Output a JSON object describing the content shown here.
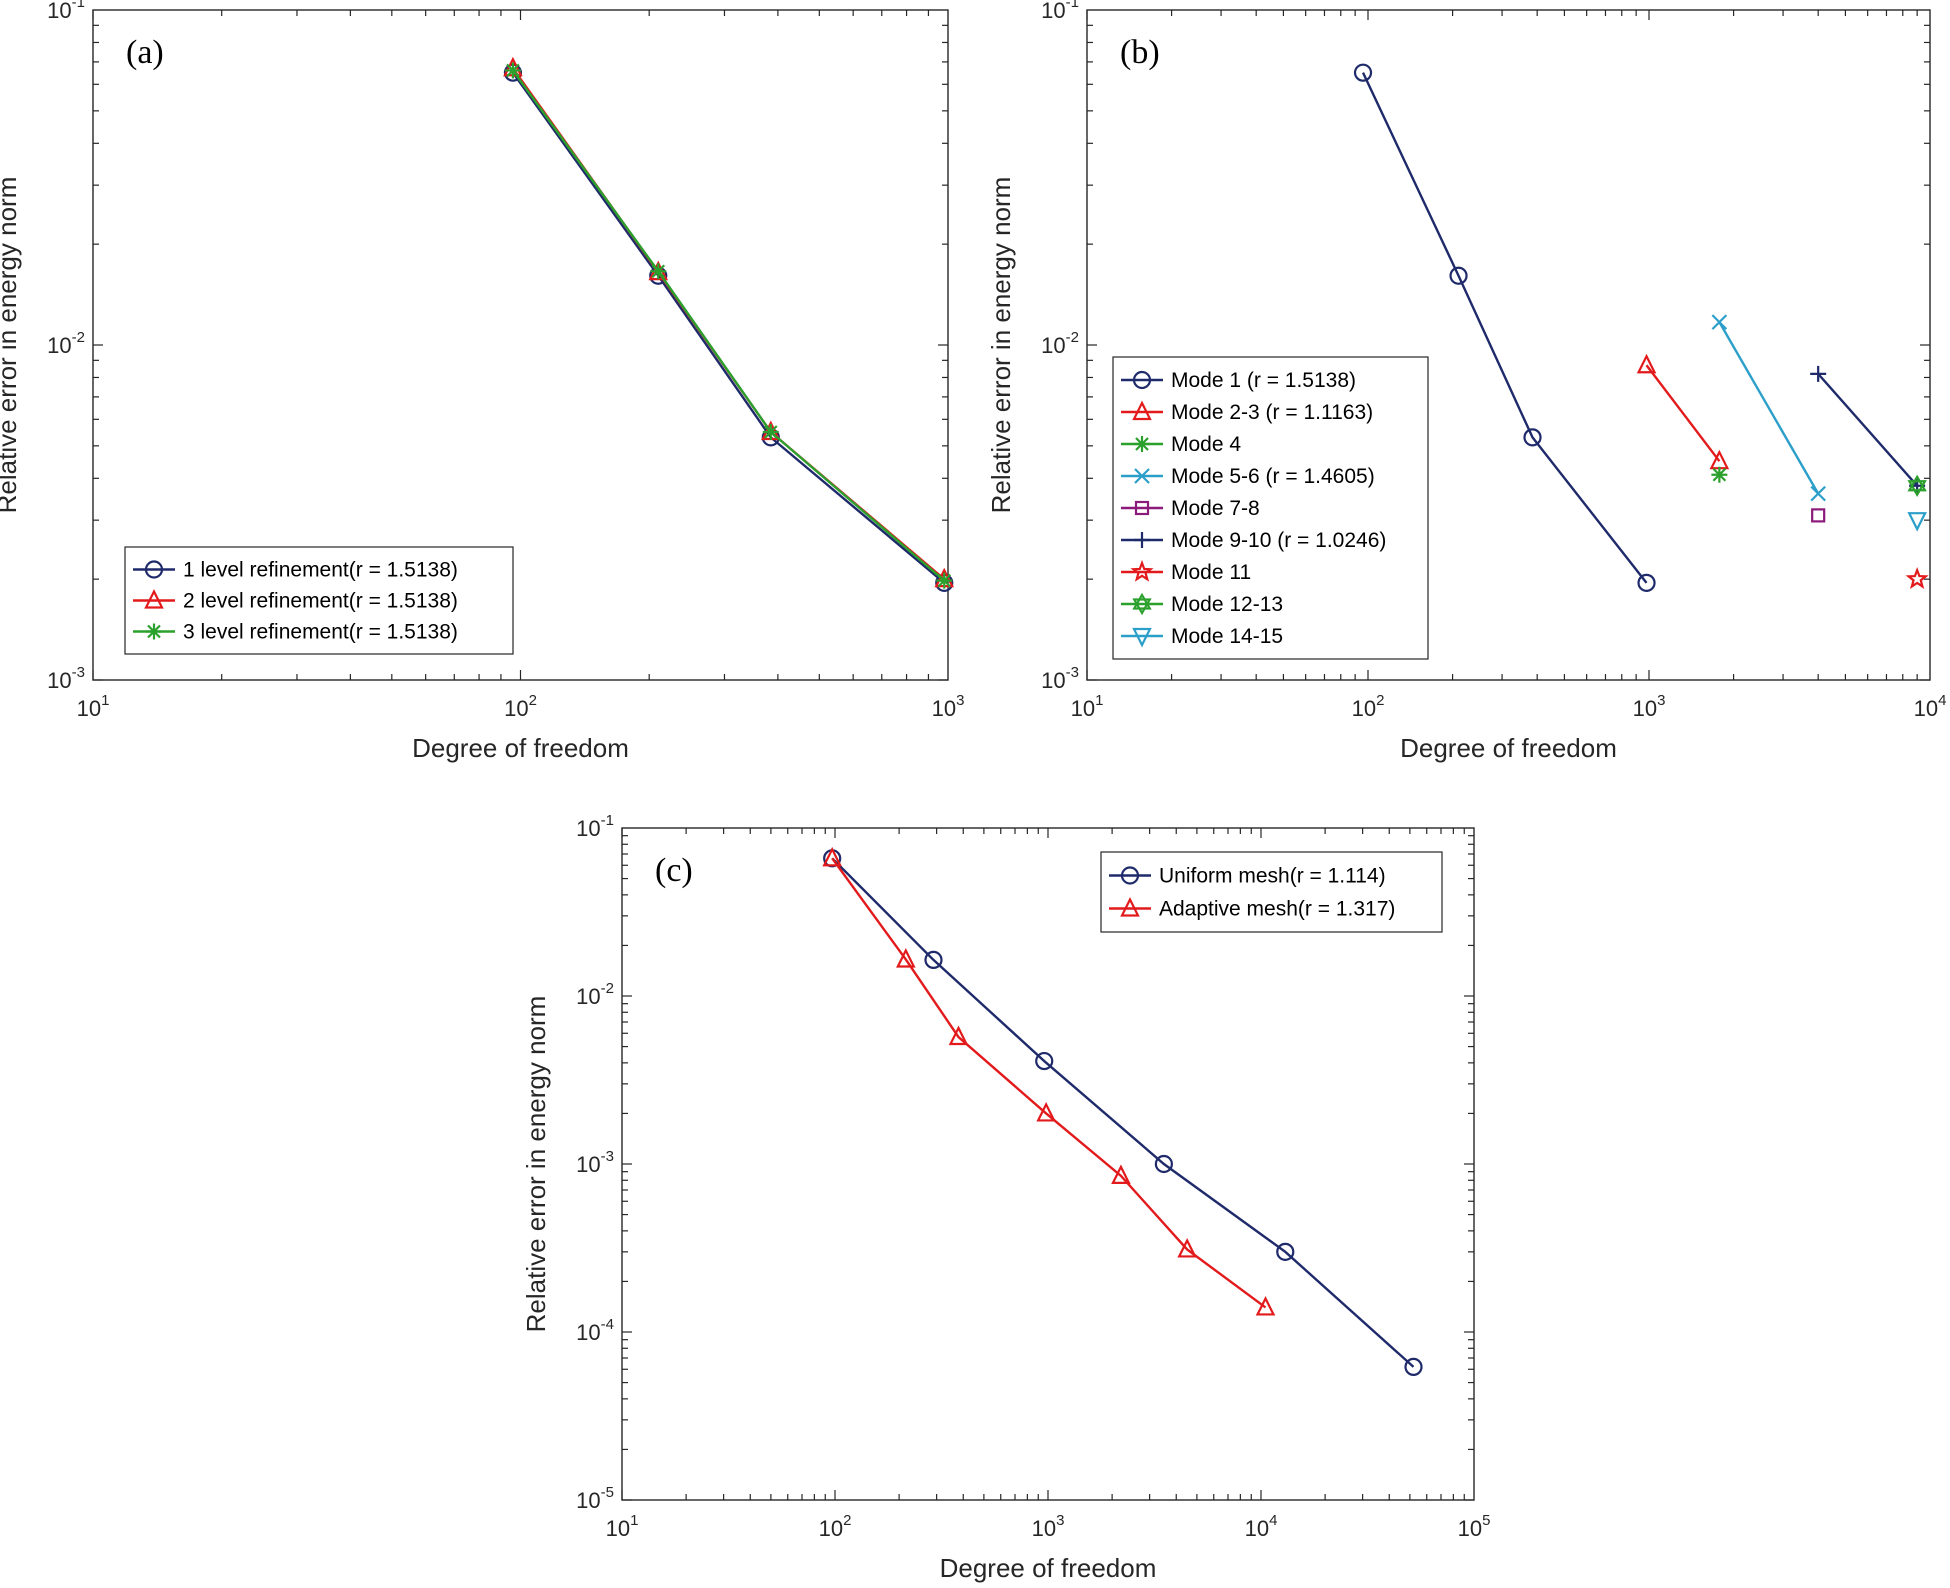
{
  "chart_data": [
    {
      "id": "a",
      "type": "line",
      "panel_label": "(a)",
      "xlabel": "Degree of freedom",
      "ylabel": "Relative error in energy norm",
      "xscale": "log",
      "yscale": "log",
      "xlim": [
        10,
        1000
      ],
      "ylim": [
        0.001,
        0.1
      ],
      "xticks": [
        {
          "base": "10",
          "exp": "1"
        },
        {
          "base": "10",
          "exp": "2"
        },
        {
          "base": "10",
          "exp": "3"
        }
      ],
      "yticks": [
        {
          "base": "10",
          "exp": "-3"
        },
        {
          "base": "10",
          "exp": "-2"
        },
        {
          "base": "10",
          "exp": "-1"
        }
      ],
      "legend_position": "bottom-left",
      "series": [
        {
          "name": "1 level refinement(r = 1.5138)",
          "color": "#1f2a6b",
          "marker": "circle",
          "x": [
            96,
            210,
            385,
            980
          ],
          "y": [
            0.065,
            0.0161,
            0.0053,
            0.00195
          ]
        },
        {
          "name": "2 level refinement(r = 1.5138)",
          "color": "#e31a1c",
          "marker": "triangle",
          "x": [
            96,
            210,
            385,
            980
          ],
          "y": [
            0.067,
            0.0165,
            0.0055,
            0.002
          ]
        },
        {
          "name": "3 level refinement(r = 1.5138)",
          "color": "#2ca02c",
          "marker": "asterisk",
          "x": [
            96,
            210,
            385,
            980
          ],
          "y": [
            0.066,
            0.0166,
            0.0055,
            0.00198
          ]
        }
      ]
    },
    {
      "id": "b",
      "type": "line",
      "panel_label": "(b)",
      "xlabel": "Degree of freedom",
      "ylabel": "Relative error in energy norm",
      "xscale": "log",
      "yscale": "log",
      "xlim": [
        10,
        10000
      ],
      "ylim": [
        0.001,
        0.1
      ],
      "xticks": [
        {
          "base": "10",
          "exp": "1"
        },
        {
          "base": "10",
          "exp": "2"
        },
        {
          "base": "10",
          "exp": "3"
        },
        {
          "base": "10",
          "exp": "4"
        }
      ],
      "yticks": [
        {
          "base": "10",
          "exp": "-3"
        },
        {
          "base": "10",
          "exp": "-2"
        },
        {
          "base": "10",
          "exp": "-1"
        }
      ],
      "legend_position": "left",
      "series": [
        {
          "name": "Mode 1 (r = 1.5138)",
          "color": "#1f2a6b",
          "marker": "circle",
          "x": [
            96,
            210,
            385,
            980
          ],
          "y": [
            0.065,
            0.0161,
            0.0053,
            0.00195
          ]
        },
        {
          "name": "Mode 2-3 (r = 1.1163)",
          "color": "#e31a1c",
          "marker": "triangle",
          "x": [
            980,
            1780
          ],
          "y": [
            0.0087,
            0.0045
          ]
        },
        {
          "name": "Mode 4",
          "color": "#2ca02c",
          "marker": "asterisk",
          "x": [
            1780
          ],
          "y": [
            0.0041
          ]
        },
        {
          "name": "Mode 5-6 (r = 1.4605)",
          "color": "#2b9fc9",
          "marker": "x",
          "x": [
            1780,
            4000
          ],
          "y": [
            0.0117,
            0.0036
          ]
        },
        {
          "name": "Mode 7-8",
          "color": "#8b1a7a",
          "marker": "square",
          "x": [
            4000
          ],
          "y": [
            0.0031
          ]
        },
        {
          "name": "Mode 9-10 (r = 1.0246)",
          "color": "#1f2a6b",
          "marker": "plus",
          "x": [
            4000,
            9000
          ],
          "y": [
            0.0082,
            0.0038
          ]
        },
        {
          "name": "Mode 11",
          "color": "#e31a1c",
          "marker": "star",
          "x": [
            9000
          ],
          "y": [
            0.002
          ]
        },
        {
          "name": "Mode 12-13",
          "color": "#2ca02c",
          "marker": "hexagram",
          "x": [
            9000
          ],
          "y": [
            0.0038
          ]
        },
        {
          "name": "Mode 14-15",
          "color": "#2b9fc9",
          "marker": "triangle-down",
          "x": [
            9000
          ],
          "y": [
            0.003
          ]
        }
      ]
    },
    {
      "id": "c",
      "type": "line",
      "panel_label": "(c)",
      "xlabel": "Degree of freedom",
      "ylabel": "Relative error in energy norm",
      "xscale": "log",
      "yscale": "log",
      "xlim": [
        10,
        100000
      ],
      "ylim": [
        1e-05,
        0.1
      ],
      "xticks": [
        {
          "base": "10",
          "exp": "1"
        },
        {
          "base": "10",
          "exp": "2"
        },
        {
          "base": "10",
          "exp": "3"
        },
        {
          "base": "10",
          "exp": "4"
        },
        {
          "base": "10",
          "exp": "5"
        }
      ],
      "yticks": [
        {
          "base": "10",
          "exp": "-5"
        },
        {
          "base": "10",
          "exp": "-4"
        },
        {
          "base": "10",
          "exp": "-3"
        },
        {
          "base": "10",
          "exp": "-2"
        },
        {
          "base": "10",
          "exp": "-1"
        }
      ],
      "legend_position": "top-right",
      "series": [
        {
          "name": "Uniform mesh(r = 1.114)",
          "color": "#1f2a6b",
          "marker": "circle",
          "x": [
            97,
            290,
            960,
            3500,
            13000,
            52000
          ],
          "y": [
            0.066,
            0.0164,
            0.0041,
            0.001,
            0.0003,
            6.2e-05
          ]
        },
        {
          "name": "Adaptive mesh(r = 1.317)",
          "color": "#e31a1c",
          "marker": "triangle",
          "x": [
            97,
            215,
            380,
            980,
            2200,
            4500,
            10500
          ],
          "y": [
            0.066,
            0.0165,
            0.0057,
            0.002,
            0.00085,
            0.00031,
            0.00014
          ]
        }
      ]
    }
  ]
}
